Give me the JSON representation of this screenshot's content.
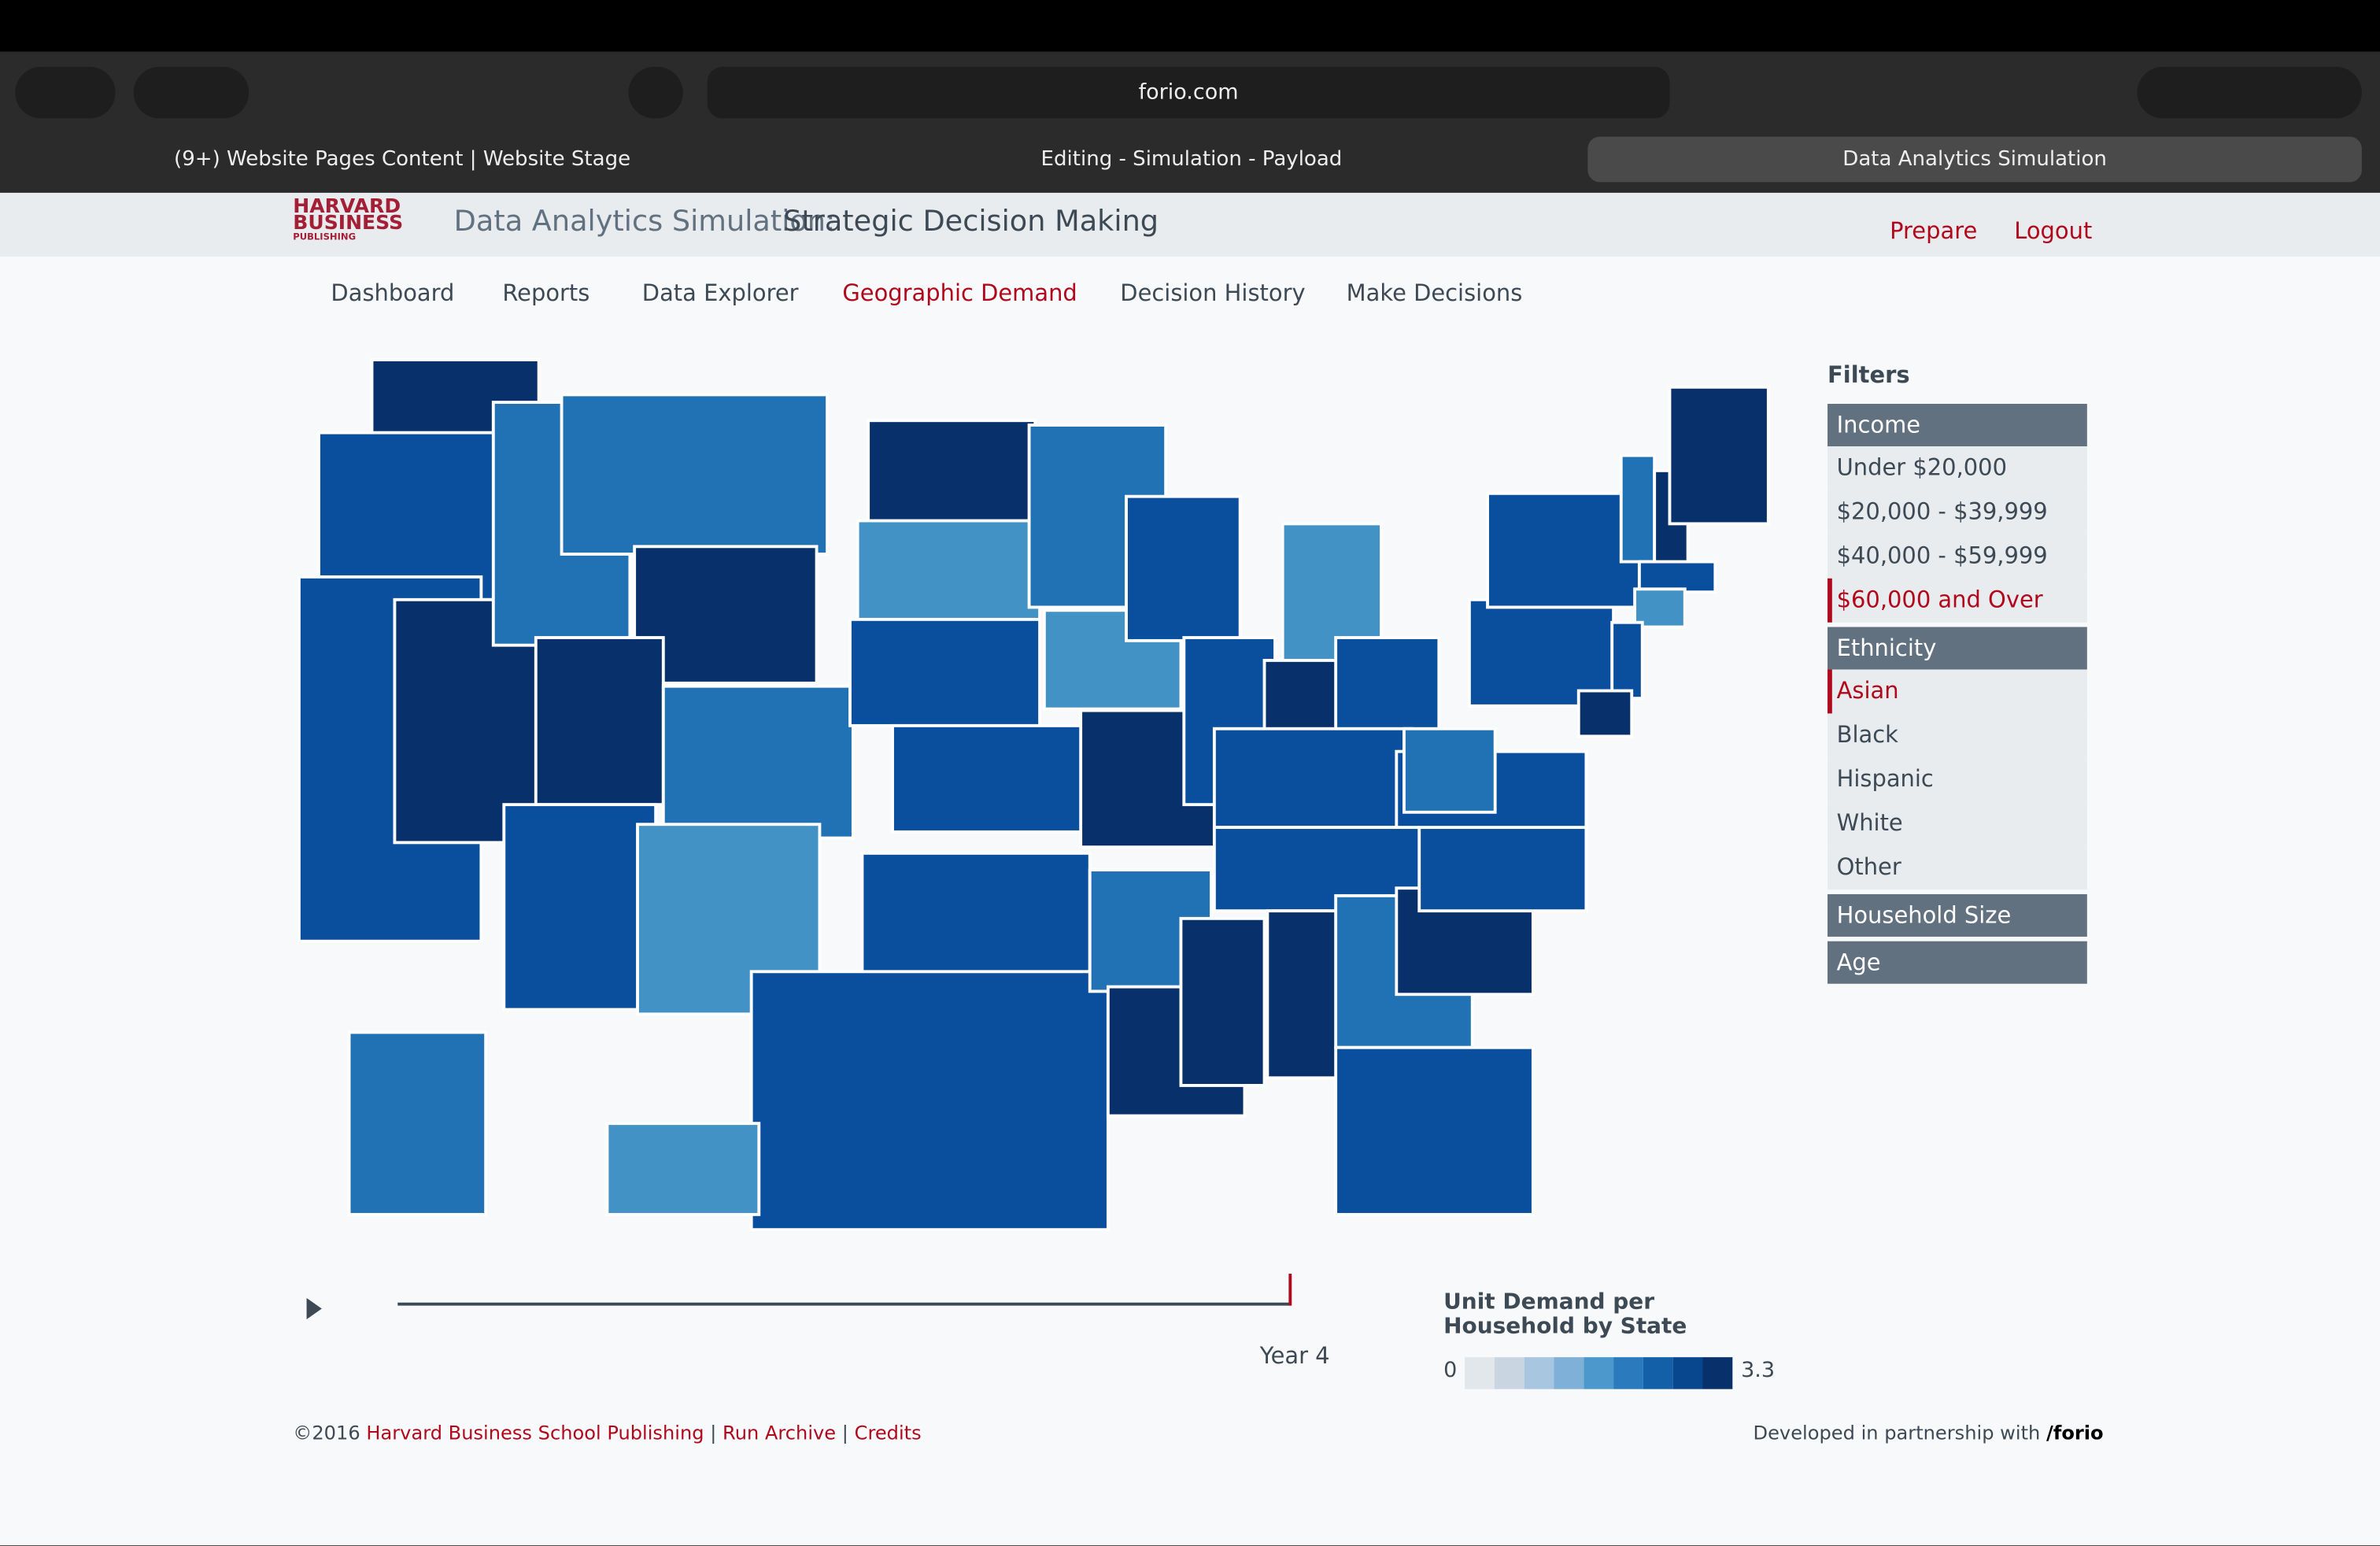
{
  "browser": {
    "url": "forio.com",
    "tabs": [
      "(9+) Website Pages Content | Website Stage",
      "Editing - Simulation - Payload",
      "Data Analytics Simulation"
    ]
  },
  "header": {
    "logo": [
      "HARVARD",
      "BUSINESS",
      "PUBLISHING"
    ],
    "app": "Data Analytics Simulation:",
    "title": "Strategic Decision Making",
    "links": [
      "Prepare",
      "Logout"
    ]
  },
  "nav": [
    "Dashboard",
    "Reports",
    "Data Explorer",
    "Geographic Demand",
    "Decision History",
    "Make Decisions"
  ],
  "filters": {
    "title": "Filters",
    "groups": [
      {
        "name": "Income",
        "options": [
          "Under $20,000",
          "$20,000 - $39,999",
          "$40,000 - $59,999",
          "$60,000 and Over"
        ]
      },
      {
        "name": "Ethnicity",
        "options": [
          "Asian",
          "Black",
          "Hispanic",
          "White",
          "Other"
        ]
      },
      {
        "name": "Household Size"
      },
      {
        "name": "Age"
      }
    ]
  },
  "timeline": {
    "label": "Year 4"
  },
  "legend": {
    "title": "Unit Demand per Household by State",
    "min": 0,
    "max": 3.3
  },
  "footer": {
    "copyright": "©2016",
    "publisher": "Harvard Business School Publishing",
    "links": [
      "Run Archive",
      "Credits"
    ],
    "partner": "Developed in partnership with",
    "brand": "/forio"
  }
}
